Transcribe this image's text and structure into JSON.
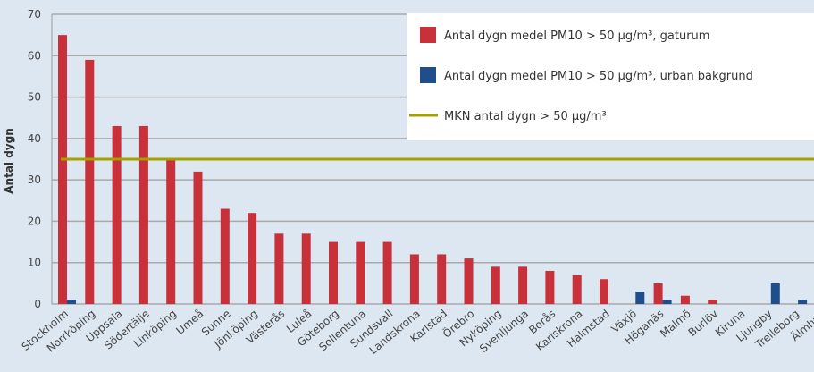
{
  "chart_data": {
    "type": "bar",
    "ylabel": "Antal dygn",
    "categories": [
      "Stockholm",
      "Norrköping",
      "Uppsala",
      "Södertälje",
      "Linköping",
      "Umeå",
      "Sunne",
      "Jönköping",
      "Västerås",
      "Luleå",
      "Göteborg",
      "Sollentuna",
      "Sundsvall",
      "Landskrona",
      "Karlstad",
      "Örebro",
      "Nyköping",
      "Svenljunga",
      "Borås",
      "Karlskrona",
      "Halmstad",
      "Växjö",
      "Höganäs",
      "Malmö",
      "Burlöv",
      "Kiruna",
      "Ljungby",
      "Trelleborg",
      "Älmhult"
    ],
    "series": [
      {
        "name": "Antal dygn medel PM10 > 50 µg/m³, gaturum",
        "color": "#c8303a",
        "values": [
          65,
          59,
          43,
          43,
          35,
          32,
          23,
          22,
          17,
          17,
          15,
          15,
          15,
          12,
          12,
          11,
          9,
          9,
          8,
          7,
          6,
          null,
          5,
          2,
          1,
          null,
          null,
          null,
          null
        ]
      },
      {
        "name": "Antal dygn medel PM10 > 50 µg/m³, urban bakgrund",
        "color": "#1f4e8c",
        "values": [
          1,
          null,
          null,
          null,
          null,
          null,
          null,
          null,
          null,
          null,
          null,
          null,
          null,
          null,
          null,
          null,
          null,
          null,
          null,
          null,
          null,
          3,
          1,
          null,
          null,
          null,
          5,
          1,
          null
        ]
      }
    ],
    "threshold": {
      "name": "MKN antal dygn > 50 µg/m³",
      "value": 35,
      "color": "#a3a000"
    },
    "ylim": [
      0,
      70
    ],
    "yticks": [
      0,
      10,
      20,
      30,
      40,
      50,
      60,
      70
    ],
    "grid": true
  }
}
